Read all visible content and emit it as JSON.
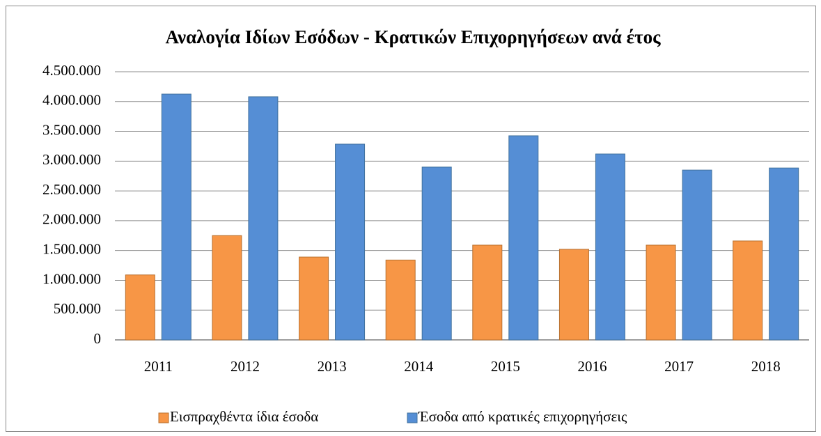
{
  "chart_data": {
    "type": "bar",
    "title": "Αναλογία Ιδίων Εσόδων - Κρατικών Επιχορηγήσεων ανά έτος",
    "categories": [
      "2011",
      "2012",
      "2013",
      "2014",
      "2015",
      "2016",
      "2017",
      "2018"
    ],
    "series": [
      {
        "name": "Εισπραχθέντα ίδια έσοδα",
        "color": "#f79646",
        "values": [
          1090000,
          1750000,
          1390000,
          1340000,
          1590000,
          1520000,
          1590000,
          1660000
        ]
      },
      {
        "name": "Έσοδα από κρατικές επιχορηγήσεις",
        "color": "#558ed5",
        "values": [
          4125000,
          4080000,
          3285000,
          2900000,
          3425000,
          3120000,
          2850000,
          2885000
        ]
      }
    ],
    "ylim": [
      0,
      4500000
    ],
    "yticks": [
      0,
      {
        "value": 500000,
        "label": "500.000"
      },
      {
        "value": 1000000,
        "label": "1.000.000"
      },
      {
        "value": 1500000,
        "label": "1.500.000"
      },
      {
        "value": 2000000,
        "label": "2.000.000"
      },
      {
        "value": 2500000,
        "label": "2.500.000"
      },
      {
        "value": 3000000,
        "label": "3.000.000"
      },
      {
        "value": 3500000,
        "label": "3.500.000"
      },
      {
        "value": 4000000,
        "label": "4.000.000"
      },
      {
        "value": 4500000,
        "label": "4.500.000"
      }
    ],
    "grid": true,
    "legend": "bottom"
  }
}
